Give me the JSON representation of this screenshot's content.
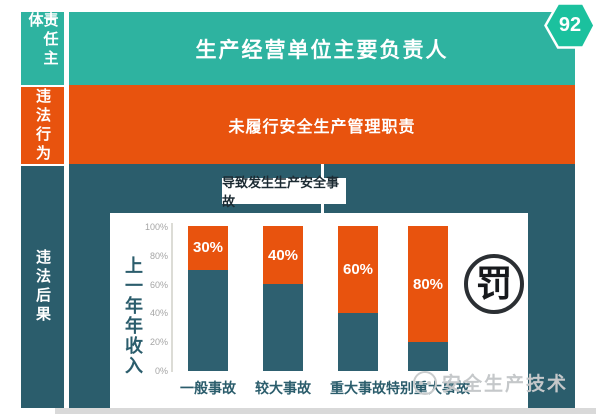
{
  "page": {
    "badge": "92",
    "watermark_text": "安全生产技术"
  },
  "sidebar": {
    "items": [
      {
        "label": "责任主体"
      },
      {
        "label": "违法行为"
      },
      {
        "label": "违法后果"
      }
    ]
  },
  "bands": {
    "subject_title": "生产经营单位主要负责人",
    "violation_text": "未履行安全生产管理职责",
    "consequence_label": "导致发生生产安全事故"
  },
  "stamp": {
    "glyph": "罚"
  },
  "colors": {
    "teal": "#2eb3a0",
    "badge_teal": "#1bc19e",
    "orange": "#e8530e",
    "dark_teal": "#2b5d6c"
  },
  "chart_data": {
    "type": "bar",
    "subtype": "stacked",
    "categories": [
      "一般事故",
      "较大事故",
      "重大事故",
      "特别重大事故"
    ],
    "series": [
      {
        "role": "fine-percent-of-income",
        "color": "#e8530e",
        "values": [
          30,
          40,
          60,
          80
        ],
        "labels": [
          "30%",
          "40%",
          "60%",
          "80%"
        ]
      },
      {
        "role": "remainder",
        "color": "#2e6070",
        "values": [
          70,
          60,
          40,
          20
        ]
      }
    ],
    "ylabel": "上一年年收入",
    "yticks": [
      "100%",
      "80%",
      "60%",
      "40%",
      "20%",
      "0%"
    ],
    "ylim": [
      0,
      100
    ],
    "grid": false,
    "legend": false
  }
}
